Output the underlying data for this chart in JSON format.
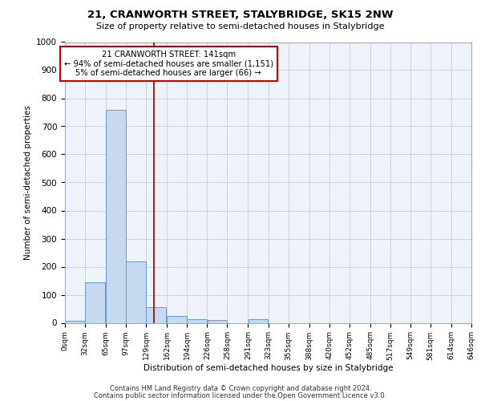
{
  "title_line1": "21, CRANWORTH STREET, STALYBRIDGE, SK15 2NW",
  "title_line2": "Size of property relative to semi-detached houses in Stalybridge",
  "xlabel": "Distribution of semi-detached houses by size in Stalybridge",
  "ylabel": "Number of semi-detached properties",
  "footer_line1": "Contains HM Land Registry data © Crown copyright and database right 2024.",
  "footer_line2": "Contains public sector information licensed under the Open Government Licence v3.0.",
  "annotation_line1": "21 CRANWORTH STREET: 141sqm",
  "annotation_line2": "← 94% of semi-detached houses are smaller (1,151)",
  "annotation_line3": "5% of semi-detached houses are larger (66) →",
  "property_size": 141,
  "bar_bins": [
    0,
    32,
    65,
    97,
    129,
    162,
    194,
    226,
    258,
    291,
    323,
    355,
    388,
    420,
    452,
    485,
    517,
    549,
    581,
    614,
    646
  ],
  "bar_values": [
    8,
    145,
    760,
    220,
    57,
    25,
    12,
    10,
    0,
    12,
    0,
    0,
    0,
    0,
    0,
    0,
    0,
    0,
    0,
    0
  ],
  "bar_color": "#c6d9f0",
  "bar_edge_color": "#6699cc",
  "vline_x": 141,
  "vline_color": "#8b0000",
  "ylim": [
    0,
    1000
  ],
  "yticks": [
    0,
    100,
    200,
    300,
    400,
    500,
    600,
    700,
    800,
    900,
    1000
  ],
  "annotation_box_color": "#ffffff",
  "annotation_box_edge": "#cc0000",
  "grid_color": "#cccccc",
  "bg_color": "#eef2fa"
}
